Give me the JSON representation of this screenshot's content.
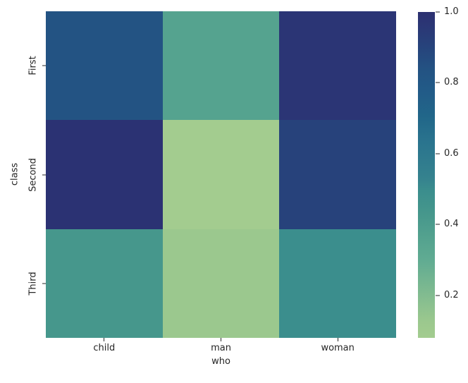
{
  "figure": {
    "background": "#ffffff",
    "text_color": "#262626"
  },
  "chart_data": {
    "type": "heatmap",
    "title": "",
    "xlabel": "who",
    "ylabel": "class",
    "x_categories": [
      "child",
      "man",
      "woman"
    ],
    "y_categories": [
      "First",
      "Second",
      "Third"
    ],
    "values": [
      [
        0.83,
        0.35,
        0.98
      ],
      [
        1.0,
        0.08,
        0.91
      ],
      [
        0.43,
        0.12,
        0.49
      ]
    ],
    "cell_colors": [
      [
        "#235383",
        "#55a38f",
        "#2b3575"
      ],
      [
        "#2b3273",
        "#a3cc8f",
        "#27427b"
      ],
      [
        "#46978c",
        "#9bc88e",
        "#3b8e8d"
      ]
    ],
    "colormap": "crest",
    "vmin": 0.08,
    "vmax": 1.0,
    "grid": "off",
    "legend": "colorbar-right",
    "colorbar": {
      "ticks": [
        1.0,
        0.8,
        0.6,
        0.4,
        0.2
      ],
      "tick_labels": [
        "1.0",
        "0.8",
        "0.6",
        "0.4",
        "0.2"
      ],
      "gradient_stops": [
        {
          "pos": 0,
          "color": "#a3cc8f"
        },
        {
          "pos": 5,
          "color": "#9bc88e"
        },
        {
          "pos": 24,
          "color": "#60ab92"
        },
        {
          "pos": 30,
          "color": "#55a38f"
        },
        {
          "pos": 38,
          "color": "#46978c"
        },
        {
          "pos": 45,
          "color": "#3b8e8d"
        },
        {
          "pos": 49,
          "color": "#35828e"
        },
        {
          "pos": 60,
          "color": "#2a748e"
        },
        {
          "pos": 68,
          "color": "#216689"
        },
        {
          "pos": 75,
          "color": "#225c88"
        },
        {
          "pos": 82,
          "color": "#235383"
        },
        {
          "pos": 90,
          "color": "#27427b"
        },
        {
          "pos": 96,
          "color": "#2b3675"
        },
        {
          "pos": 100,
          "color": "#2c3070"
        }
      ]
    }
  }
}
